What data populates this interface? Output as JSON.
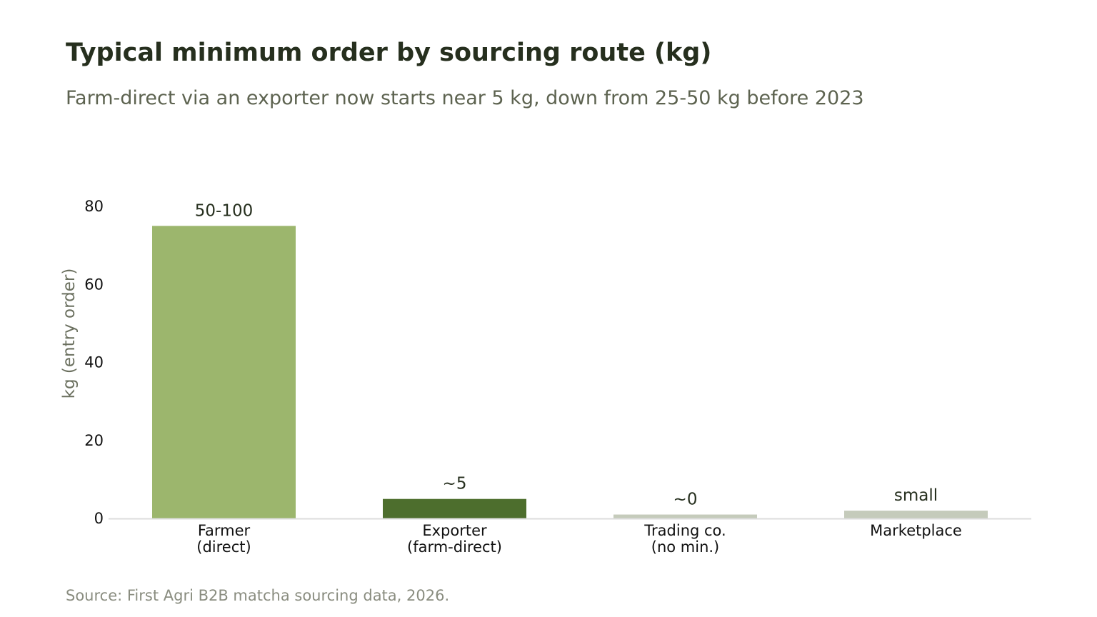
{
  "chart_data": {
    "type": "bar",
    "title": "Typical minimum order by sourcing route (kg)",
    "subtitle": "Farm-direct via an exporter now starts near 5 kg, down from 25-50 kg before 2023",
    "ylabel": "kg (entry order)",
    "xlabel": "",
    "ylim": [
      0,
      80
    ],
    "yticks": [
      0,
      20,
      40,
      60,
      80
    ],
    "grid": false,
    "categories": [
      [
        "Farmer",
        "(direct)"
      ],
      [
        "Exporter",
        "(farm-direct)"
      ],
      [
        "Trading co.",
        "(no min.)"
      ],
      [
        "Marketplace"
      ]
    ],
    "values": [
      75,
      5,
      1,
      2
    ],
    "data_labels": [
      "50-100",
      "~5",
      "~0",
      "small"
    ],
    "colors": [
      "#9cb66d",
      "#4d6e2d",
      "#c5cbbb",
      "#c5cbbb"
    ],
    "axis_color": "#dddddd",
    "source": "Source: First Agri B2B matcha sourcing data, 2026."
  }
}
